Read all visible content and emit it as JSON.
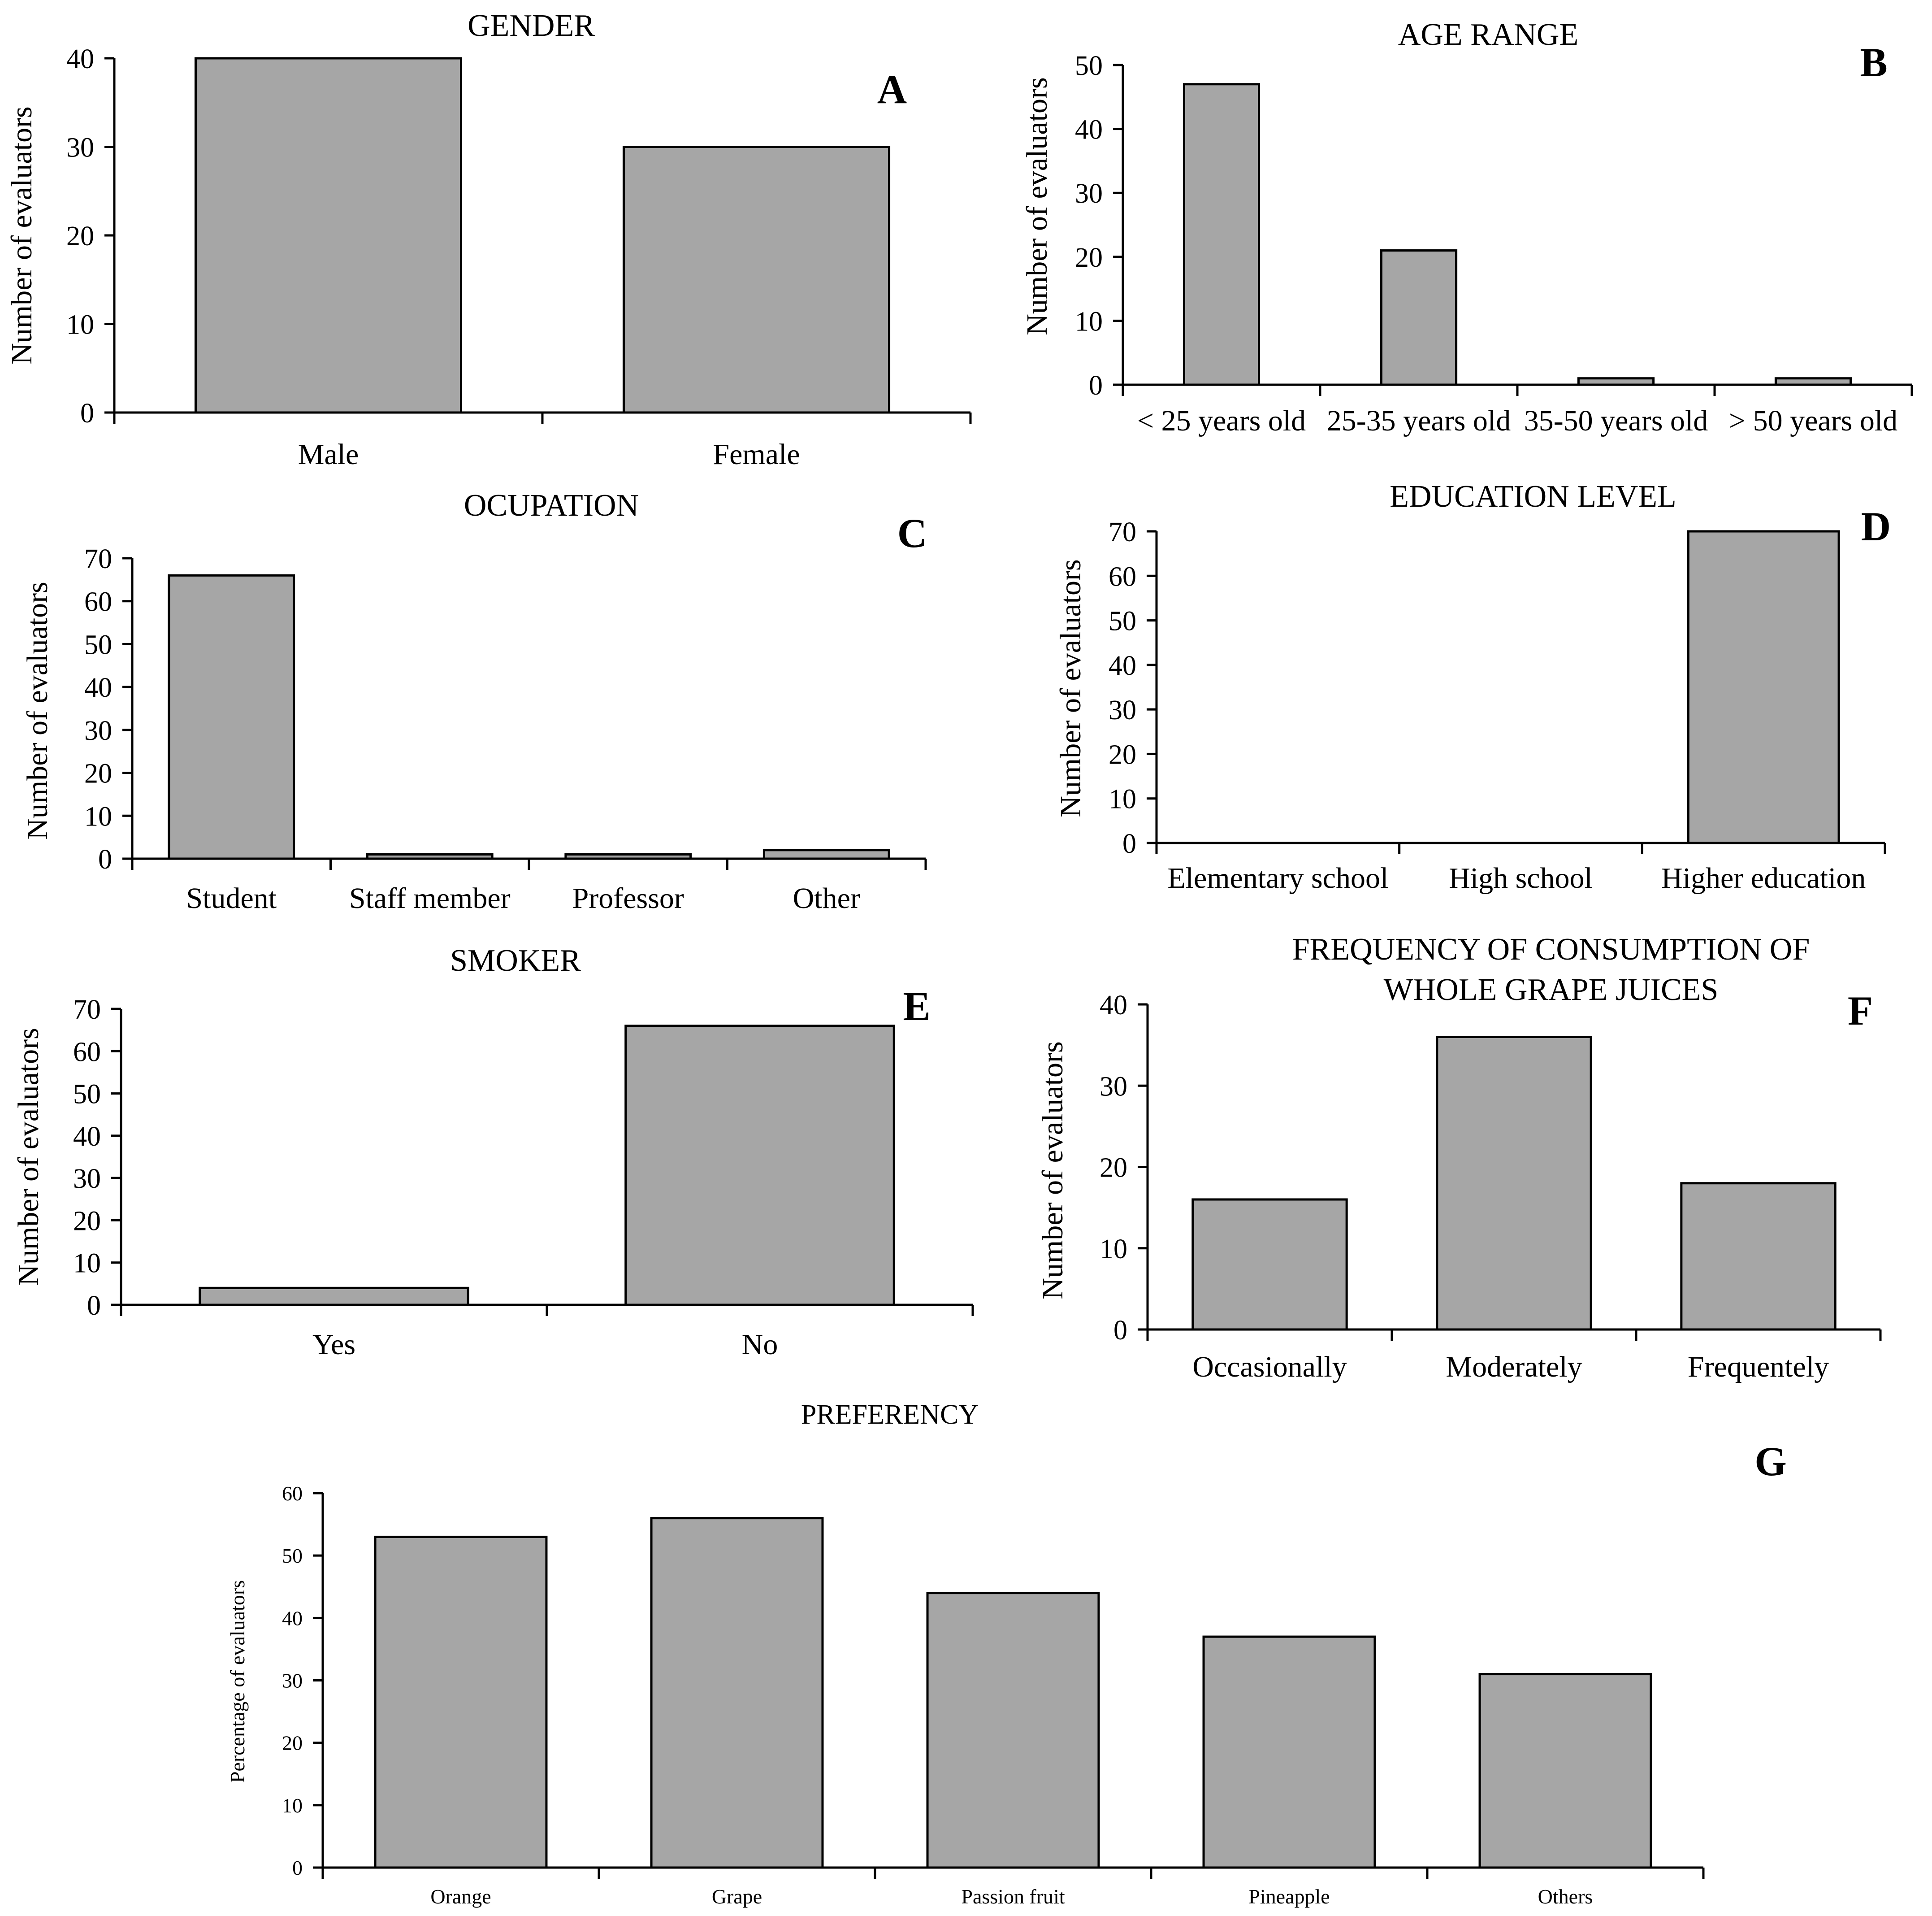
{
  "chart_data": [
    {
      "id": "A",
      "type": "bar",
      "panel_label": "A",
      "title": "GENDER",
      "categories": [
        "Male",
        "Female"
      ],
      "values": [
        40,
        30
      ],
      "xlabel": "",
      "ylabel": "Number of evaluators",
      "ylim": [
        0,
        40
      ],
      "yticks": [
        0,
        10,
        20,
        30,
        40
      ],
      "bar_color": "#a6a6a6"
    },
    {
      "id": "B",
      "type": "bar",
      "panel_label": "B",
      "title": "AGE RANGE",
      "categories": [
        "< 25 years old",
        "25-35 years old",
        "35-50 years old",
        "> 50 years old"
      ],
      "values": [
        47,
        21,
        1,
        1
      ],
      "xlabel": "",
      "ylabel": "Number of evaluators",
      "ylim": [
        0,
        50
      ],
      "yticks": [
        0,
        10,
        20,
        30,
        40,
        50
      ],
      "bar_color": "#a6a6a6"
    },
    {
      "id": "C",
      "type": "bar",
      "panel_label": "C",
      "title": "OCUPATION",
      "categories": [
        "Student",
        "Staff member",
        "Professor",
        "Other"
      ],
      "values": [
        66,
        1,
        1,
        2
      ],
      "xlabel": "",
      "ylabel": "Number of evaluators",
      "ylim": [
        0,
        70
      ],
      "yticks": [
        0,
        10,
        20,
        30,
        40,
        50,
        60,
        70
      ],
      "bar_color": "#a6a6a6"
    },
    {
      "id": "D",
      "type": "bar",
      "panel_label": "D",
      "title": "EDUCATION LEVEL",
      "categories": [
        "Elementary school",
        "High school",
        "Higher education"
      ],
      "values": [
        0,
        0,
        70
      ],
      "xlabel": "",
      "ylabel": "Number of evaluators",
      "ylim": [
        0,
        70
      ],
      "yticks": [
        0,
        10,
        20,
        30,
        40,
        50,
        60,
        70
      ],
      "bar_color": "#a6a6a6"
    },
    {
      "id": "E",
      "type": "bar",
      "panel_label": "E",
      "title": "SMOKER",
      "categories": [
        "Yes",
        "No"
      ],
      "values": [
        4,
        66
      ],
      "xlabel": "",
      "ylabel": "Number of evaluators",
      "ylim": [
        0,
        70
      ],
      "yticks": [
        0,
        10,
        20,
        30,
        40,
        50,
        60,
        70
      ],
      "bar_color": "#a6a6a6"
    },
    {
      "id": "F",
      "type": "bar",
      "panel_label": "F",
      "title": [
        "FREQUENCY OF CONSUMPTION OF",
        "WHOLE GRAPE JUICES"
      ],
      "categories": [
        "Occasionally",
        "Moderately",
        "Frequentely"
      ],
      "values": [
        16,
        36,
        18
      ],
      "xlabel": "",
      "ylabel": "Number of evaluators",
      "ylim": [
        0,
        40
      ],
      "yticks": [
        0,
        10,
        20,
        30,
        40
      ],
      "bar_color": "#a6a6a6"
    },
    {
      "id": "G",
      "type": "bar",
      "panel_label": "G",
      "title": "PREFERENCY",
      "categories": [
        "Orange",
        "Grape",
        "Passion fruit",
        "Pineapple",
        "Others"
      ],
      "values": [
        53,
        56,
        44,
        37,
        31
      ],
      "xlabel": "",
      "ylabel": "Percentage of evaluators",
      "ylim": [
        0,
        60
      ],
      "yticks": [
        0,
        10,
        20,
        30,
        40,
        50,
        60
      ],
      "bar_color": "#a6a6a6"
    }
  ]
}
